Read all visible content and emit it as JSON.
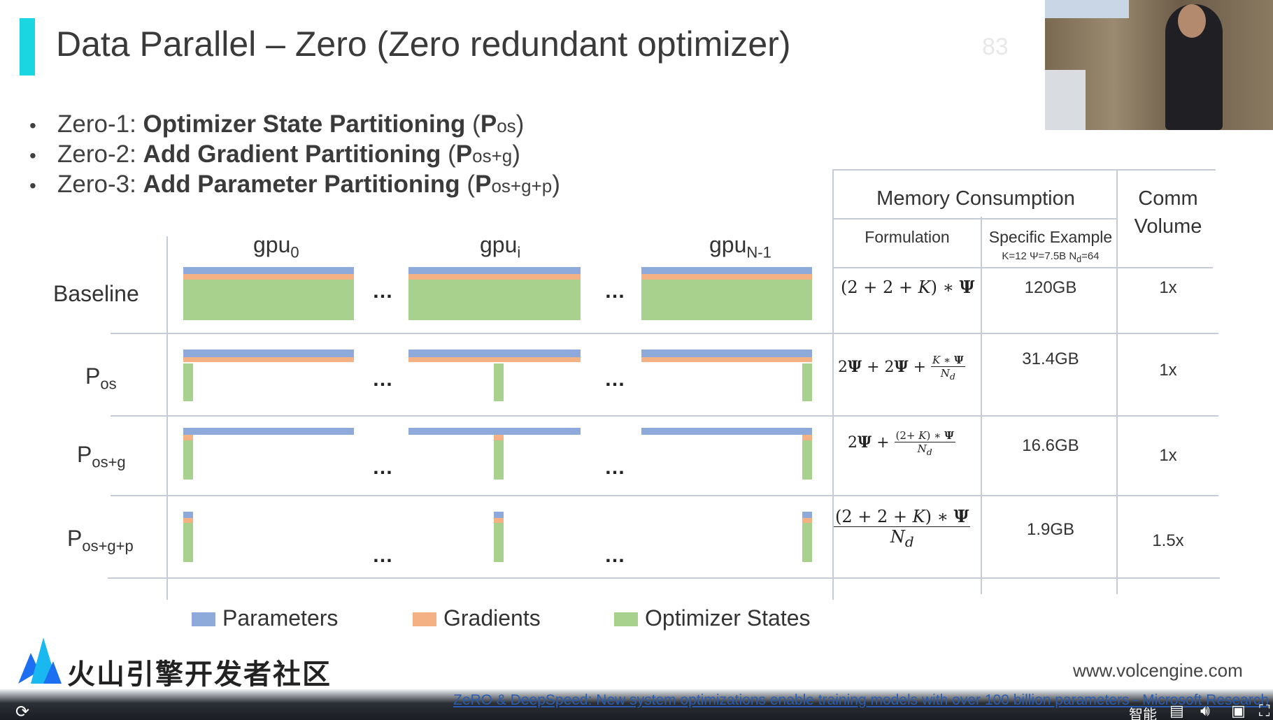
{
  "slide": {
    "title": "Data Parallel – Zero (Zero redundant optimizer)",
    "page_number": "83"
  },
  "bullets": [
    {
      "prefix": "Zero-1: ",
      "bold": "Optimizer State Partitioning",
      "paren_open": " (",
      "p": "P",
      "sub": "os",
      "paren_close": ")"
    },
    {
      "prefix": "Zero-2: ",
      "bold": "Add Gradient Partitioning",
      "paren_open": " (",
      "p": "P",
      "sub": "os+g",
      "paren_close": ")"
    },
    {
      "prefix": "Zero-3: ",
      "bold": "Add Parameter Partitioning",
      "paren_open": " (",
      "p": "P",
      "sub": "os+g+p",
      "paren_close": ")"
    }
  ],
  "diagram": {
    "columns": [
      {
        "base": "gpu",
        "sub": "0"
      },
      {
        "base": "gpu",
        "sub": "i"
      },
      {
        "base": "gpu",
        "sub": "N-1"
      }
    ],
    "ellipsis": "…",
    "rows": [
      {
        "label": "Baseline",
        "sub": ""
      },
      {
        "label": "P",
        "sub": "os"
      },
      {
        "label": "P",
        "sub": "os+g"
      },
      {
        "label": "P",
        "sub": "os+g+p"
      }
    ],
    "legend": [
      {
        "label": "Parameters",
        "color": "#8eaadb"
      },
      {
        "label": "Gradients",
        "color": "#f4b183"
      },
      {
        "label": "Optimizer States",
        "color": "#a9d18e"
      }
    ]
  },
  "table": {
    "header_memory": "Memory Consumption",
    "header_comm_line1": "Comm",
    "header_comm_line2": "Volume",
    "col_formulation": "Formulation",
    "col_example": "Specific Example",
    "col_example_params": "K=12 Ψ=7.5B N",
    "col_example_params_sub": "d",
    "col_example_params_end": "=64",
    "rows": [
      {
        "example": "120GB",
        "comm": "1x"
      },
      {
        "example": "31.4GB",
        "comm": "1x"
      },
      {
        "example": "16.6GB",
        "comm": "1x"
      },
      {
        "example": "1.9GB",
        "comm": "1.5x"
      }
    ]
  },
  "footer": {
    "logo_text": "火山引擎开发者社区",
    "website": "www.volcengine.com"
  },
  "player": {
    "link_text": "ZeRO & DeepSpeed: New system optimizations enable training models with over 100 billion parameters - Microsoft Research",
    "label_smart": "智能",
    "reload_icon": "reload-icon",
    "subtitle_icon": "subtitle-icon",
    "volume_icon": "volume-icon",
    "pip_icon": "picture-in-picture-icon",
    "fullscreen_icon": "fullscreen-icon"
  },
  "colors": {
    "accent": "#19d6e0",
    "parameters": "#8eaadb",
    "gradients": "#f4b183",
    "optimizer": "#a9d18e"
  }
}
